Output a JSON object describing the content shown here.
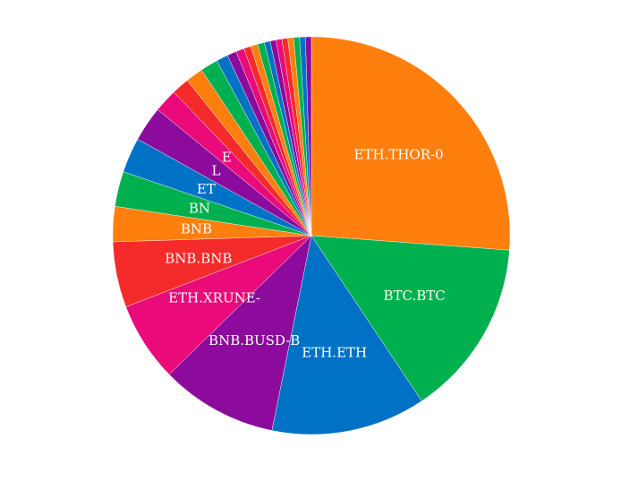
{
  "chart_data": {
    "type": "pie",
    "direction": "clockwise",
    "start_angle_deg": 0,
    "labels": [
      "ETH.THOR-0",
      "BTC.BTC",
      "ETH.ETH",
      "BNB.BUSD-B",
      "ETH.XRUNE-",
      "BNB.BNB",
      "BNB",
      "BN",
      "ET",
      "L",
      "E",
      "",
      "",
      "",
      "",
      "",
      "",
      "",
      "",
      "",
      "",
      "",
      "",
      "",
      "",
      "",
      "",
      ""
    ],
    "values": [
      27.5,
      15.2,
      13.2,
      10.0,
      6.8,
      5.6,
      3.0,
      3.0,
      3.0,
      3.0,
      2.0,
      1.5,
      1.5,
      1.5,
      1.0,
      0.8,
      0.7,
      0.6,
      0.6,
      0.6,
      0.5,
      0.5,
      0.5,
      0.5,
      0.5,
      0.5,
      0.5,
      0.5
    ],
    "colors": [
      "#ff7f0e",
      "#00b04f",
      "#0072c6",
      "#8c0a9c",
      "#ea0a7a",
      "#f52a2a",
      "#ff7f0e",
      "#00b04f",
      "#0072c6",
      "#8c0a9c",
      "#ea0a7a",
      "#f52a2a",
      "#ff7f0e",
      "#00b04f",
      "#0072c6",
      "#8c0a9c",
      "#ea0a7a",
      "#f52a2a",
      "#ff7f0e",
      "#00b04f",
      "#0072c6",
      "#8c0a9c",
      "#ea0a7a",
      "#f52a2a",
      "#ff7f0e",
      "#00b04f",
      "#0072c6",
      "#8c0a9c"
    ]
  }
}
